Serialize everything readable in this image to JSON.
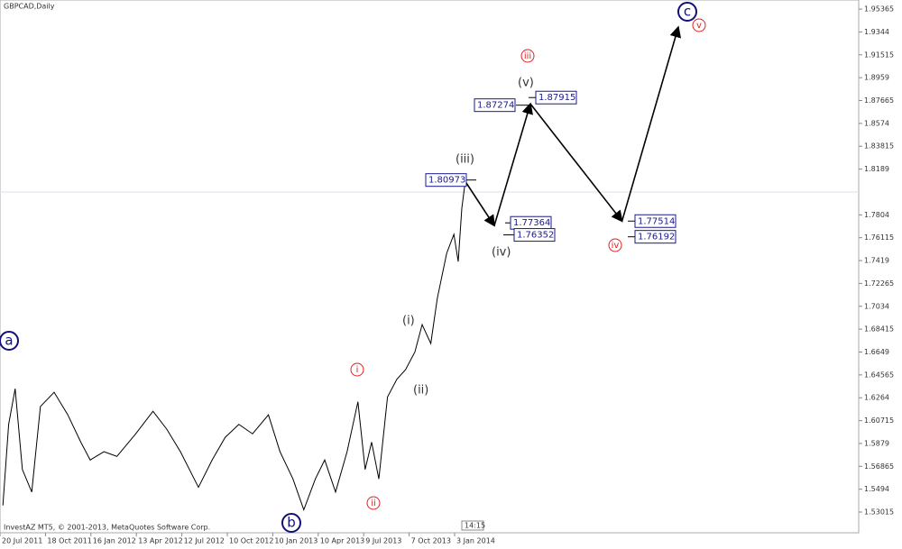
{
  "chart_data": {
    "type": "line",
    "title": "GBPCAD,Daily",
    "footer": "InvestAZ MT5, © 2001-2013, MetaQuotes Software Corp.",
    "clock": "14:15",
    "xlim": [
      0,
      1190
    ],
    "xticks": [
      {
        "value": 0,
        "label": "20 Jul 2011"
      },
      {
        "value": 63,
        "label": "18 Oct 2011"
      },
      {
        "value": 126,
        "label": "16 Jan 2012"
      },
      {
        "value": 189,
        "label": "13 Apr 2012"
      },
      {
        "value": 252,
        "label": "12 Jul 2012"
      },
      {
        "value": 315,
        "label": "10 Oct 2012"
      },
      {
        "value": 378,
        "label": "10 Jan 2013"
      },
      {
        "value": 441,
        "label": "10 Apr 2013"
      },
      {
        "value": 504,
        "label": "9 Jul 2013"
      },
      {
        "value": 567,
        "label": "7 Oct 2013"
      },
      {
        "value": 630,
        "label": "3 Jan 2014"
      }
    ],
    "ylim": [
      1.5127,
      1.9613
    ],
    "yticks": [
      1.95365,
      1.9344,
      1.91515,
      1.8959,
      1.87665,
      1.8574,
      1.83815,
      1.8189,
      1.7804,
      1.76115,
      1.7419,
      1.72265,
      1.7034,
      1.68415,
      1.6649,
      1.64565,
      1.6264,
      1.60715,
      1.5879,
      1.56865,
      1.5494,
      1.53015
    ],
    "series": [
      {
        "name": "GBPCAD",
        "color": "#000000",
        "x": [
          4,
          12,
          21,
          31,
          44,
          56,
          75,
          94,
          112,
          125,
          144,
          162,
          188,
          212,
          231,
          250,
          275,
          294,
          312,
          331,
          350,
          372,
          388,
          406,
          421,
          437,
          450,
          465,
          481,
          496,
          506,
          515,
          525,
          537,
          550,
          562,
          575,
          585,
          597,
          606,
          619,
          629,
          635,
          640,
          644
        ],
        "values": [
          1.5357,
          1.604,
          1.634,
          1.566,
          1.547,
          1.619,
          1.631,
          1.612,
          1.589,
          1.574,
          1.581,
          1.577,
          1.596,
          1.615,
          1.6,
          1.581,
          1.551,
          1.574,
          1.593,
          1.604,
          1.596,
          1.612,
          1.581,
          1.558,
          1.532,
          1.558,
          1.574,
          1.547,
          1.581,
          1.623,
          1.566,
          1.589,
          1.558,
          1.627,
          1.642,
          1.65,
          1.665,
          1.688,
          1.672,
          1.71,
          1.748,
          1.764,
          1.741,
          1.786,
          1.805
        ]
      }
    ],
    "forecast": {
      "x": [
        644,
        685,
        735,
        862,
        940
      ],
      "values": [
        1.8093,
        1.7713,
        1.8739,
        1.7751,
        1.9385
      ]
    },
    "levels": [
      1.80973,
      1.77364,
      1.76352,
      1.87274,
      1.87915,
      1.77514,
      1.76192
    ],
    "waves": [
      "(iii)",
      "(iv)",
      "(v)",
      "(i)",
      "(ii)",
      "i",
      "ii",
      "iii",
      "iv",
      "v",
      "a",
      "b",
      "c"
    ]
  }
}
